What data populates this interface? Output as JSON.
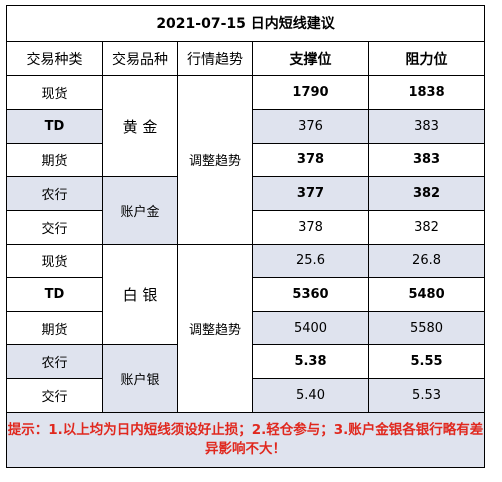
{
  "title": "2021-07-15 日内短线建议",
  "headers": {
    "type": "交易种类",
    "product": "交易品种",
    "trend": "行情趋势",
    "support": "支撑位",
    "resistance": "阻力位"
  },
  "groups": {
    "gold_name": "黄 金",
    "gold_account": "账户金",
    "silver_name": "白 银",
    "silver_account": "账户银",
    "trend_1": "调整趋势",
    "trend_2": "调整趋势"
  },
  "rows": [
    {
      "type": "现货",
      "support": "1790",
      "resistance": "1838"
    },
    {
      "type": "TD",
      "support": "376",
      "resistance": "383"
    },
    {
      "type": "期货",
      "support": "378",
      "resistance": "383"
    },
    {
      "type": "农行",
      "support": "377",
      "resistance": "382"
    },
    {
      "type": "交行",
      "support": "378",
      "resistance": "382"
    },
    {
      "type": "现货",
      "support": "25.6",
      "resistance": "26.8"
    },
    {
      "type": "TD",
      "support": "5360",
      "resistance": "5480"
    },
    {
      "type": "期货",
      "support": "5400",
      "resistance": "5580"
    },
    {
      "type": "农行",
      "support": "5.38",
      "resistance": "5.55"
    },
    {
      "type": "交行",
      "support": "5.40",
      "resistance": "5.53"
    }
  ],
  "note": "提示：1.以上均为日内短线须设好止损；2.轻仓参与；3.账户金银各银行略有差异影响不大！",
  "colors": {
    "note_text": "#e0281e",
    "shaded_cell": "#dfe3ee"
  }
}
